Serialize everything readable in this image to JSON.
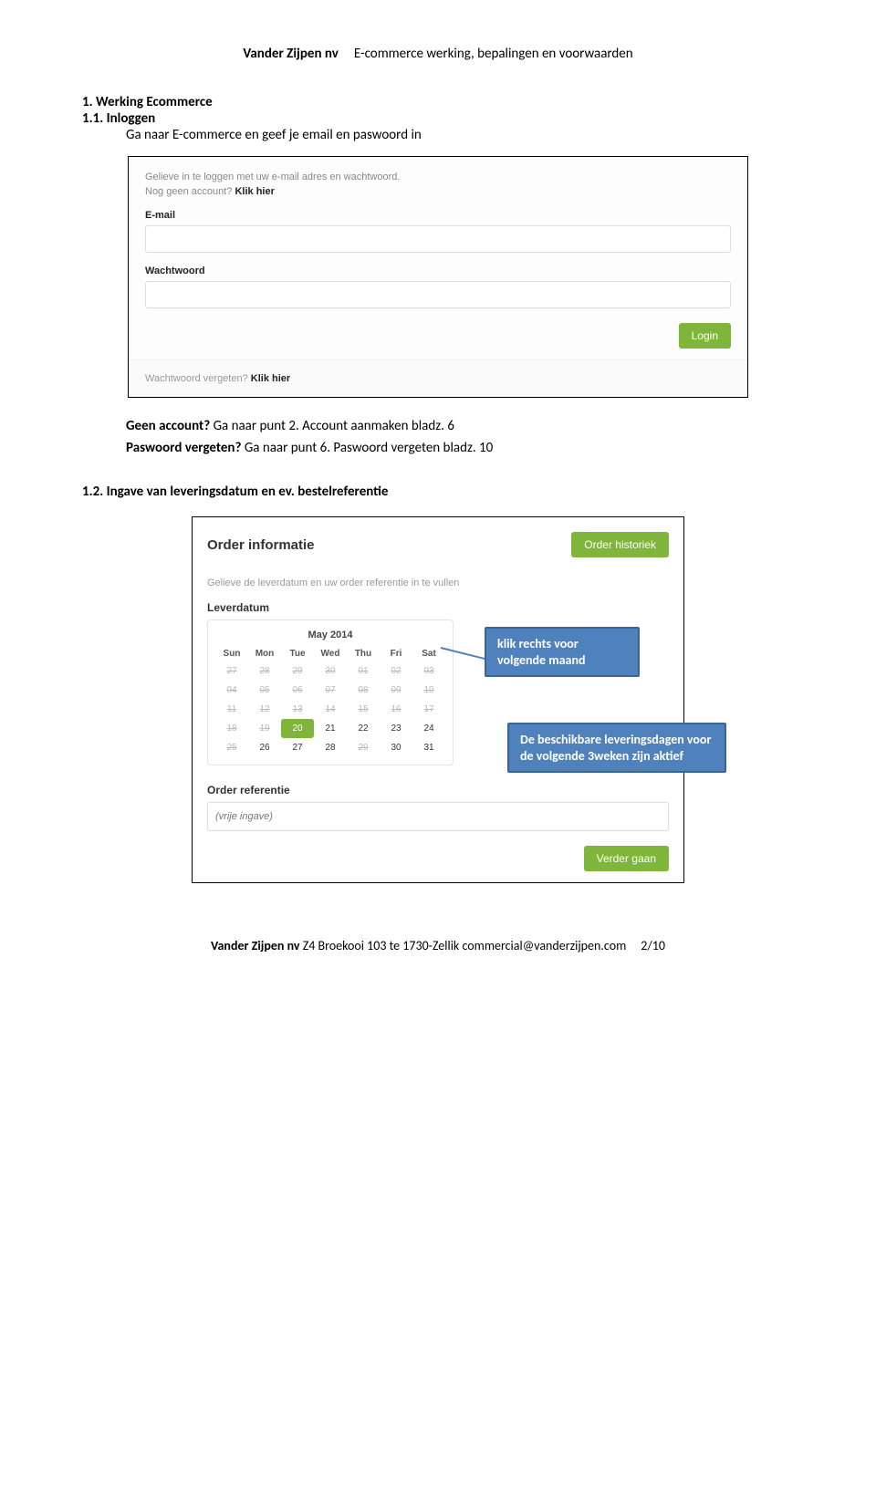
{
  "header": {
    "company": "Vander Zijpen nv",
    "doc_title": "E-commerce werking, bepalingen en voorwaarden"
  },
  "section1": {
    "h1": "1. Werking Ecommerce",
    "h2": "1.1. Inloggen",
    "line": "Ga naar E-commerce en geef je email en paswoord in"
  },
  "login_panel": {
    "intro": "Gelieve in te loggen met uw e-mail adres en wachtwoord.",
    "nog_prefix": "Nog geen account? ",
    "nog_bold": "Klik hier",
    "email_label": "E-mail",
    "pass_label": "Wachtwoord",
    "login_btn": "Login",
    "forgot_prefix": "Wachtwoord vergeten? ",
    "forgot_bold": "Klik hier"
  },
  "post_login": {
    "l1a": "Geen account?",
    "l1b": " Ga naar punt 2. Account aanmaken bladz. 6",
    "l2a": "Paswoord vergeten?",
    "l2b": " Ga naar punt 6. Paswoord vergeten bladz. 10"
  },
  "section12": "1.2. Ingave van leveringsdatum en ev. bestelreferentie",
  "order": {
    "title": "Order informatie",
    "hist_btn": "Order historiek",
    "sub": "Gelieve de leverdatum en uw order referentie in te vullen",
    "lever_label": "Leverdatum",
    "cal_title": "May 2014",
    "dow": [
      "Sun",
      "Mon",
      "Tue",
      "Wed",
      "Thu",
      "Fri",
      "Sat"
    ],
    "rows": [
      [
        {
          "d": "27",
          "dis": true
        },
        {
          "d": "28",
          "dis": true
        },
        {
          "d": "29",
          "dis": true
        },
        {
          "d": "30",
          "dis": true
        },
        {
          "d": "01",
          "dis": true
        },
        {
          "d": "02",
          "dis": true
        },
        {
          "d": "03",
          "dis": true
        }
      ],
      [
        {
          "d": "04",
          "dis": true
        },
        {
          "d": "05",
          "dis": true
        },
        {
          "d": "06",
          "dis": true
        },
        {
          "d": "07",
          "dis": true
        },
        {
          "d": "08",
          "dis": true
        },
        {
          "d": "09",
          "dis": true
        },
        {
          "d": "10",
          "dis": true
        }
      ],
      [
        {
          "d": "11",
          "dis": true
        },
        {
          "d": "12",
          "dis": true
        },
        {
          "d": "13",
          "dis": true
        },
        {
          "d": "14",
          "dis": true
        },
        {
          "d": "15",
          "dis": true
        },
        {
          "d": "16",
          "dis": true
        },
        {
          "d": "17",
          "dis": true
        }
      ],
      [
        {
          "d": "18",
          "dis": true
        },
        {
          "d": "19",
          "dis": true
        },
        {
          "d": "20",
          "sel": true
        },
        {
          "d": "21"
        },
        {
          "d": "22"
        },
        {
          "d": "23"
        },
        {
          "d": "24"
        }
      ],
      [
        {
          "d": "25",
          "dis": true
        },
        {
          "d": "26"
        },
        {
          "d": "27"
        },
        {
          "d": "28"
        },
        {
          "d": "29",
          "dis": true
        },
        {
          "d": "30"
        },
        {
          "d": "31"
        }
      ]
    ],
    "ref_label": "Order referentie",
    "ref_placeholder": "(vrije ingave)",
    "next_btn": "Verder gaan"
  },
  "callouts": {
    "c1": "klik rechts voor volgende maand",
    "c2": "De beschikbare leveringsdagen voor de volgende 3weken  zijn aktief"
  },
  "footer": {
    "company": "Vander Zijpen nv",
    "addr": "Z4 Broekooi 103 te 1730-Zellik  commercial@vanderzijpen.com",
    "page": "2/10"
  },
  "colors": {
    "btn_green": "#7fb53b",
    "callout_bg": "#4f81bd",
    "callout_border": "#3b6599"
  }
}
